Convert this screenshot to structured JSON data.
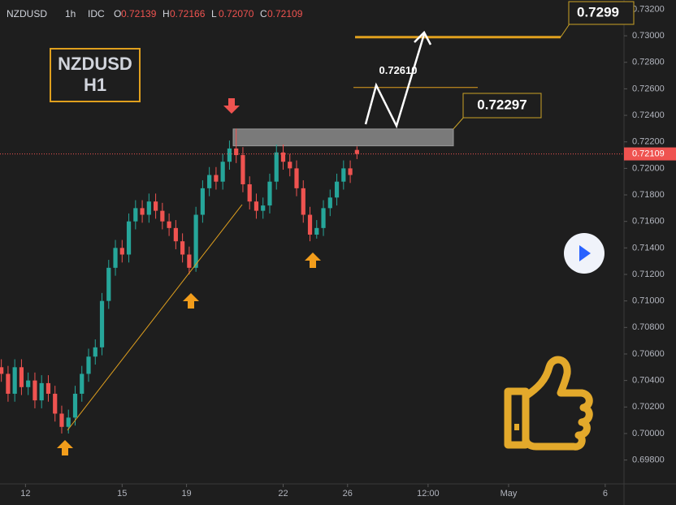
{
  "header": {
    "symbol": "NZDUSD",
    "interval": "1h",
    "exchange": "IDC",
    "ohlc": [
      {
        "key": "O",
        "value": "0.72139"
      },
      {
        "key": "H",
        "value": "0.72166"
      },
      {
        "key": "L",
        "value": "0.72070"
      },
      {
        "key": "C",
        "value": "0.72109"
      }
    ]
  },
  "chart_data": {
    "type": "candlestick",
    "label_lines": [
      "NZDUSD",
      "H1"
    ],
    "x": [
      -18,
      -13,
      -8,
      -3,
      2,
      7,
      12,
      17,
      22,
      27,
      32,
      37,
      42,
      47,
      52,
      57,
      62,
      67,
      72,
      77,
      82,
      87,
      92,
      97,
      102,
      107,
      112,
      117,
      122,
      127,
      132,
      137,
      142,
      147,
      152,
      157,
      162,
      167,
      172,
      177,
      182,
      187,
      192,
      197,
      202,
      207,
      212,
      217,
      222,
      227,
      232,
      237,
      242,
      247
    ],
    "open": [
      0.705,
      0.7045,
      0.703,
      0.705,
      0.7035,
      0.704,
      0.7025,
      0.7038,
      0.703,
      0.7015,
      0.7005,
      0.7012,
      0.703,
      0.7045,
      0.7058,
      0.7065,
      0.71,
      0.7125,
      0.714,
      0.7135,
      0.716,
      0.717,
      0.7165,
      0.7175,
      0.7168,
      0.716,
      0.7155,
      0.7145,
      0.7135,
      0.7125,
      0.7165,
      0.7185,
      0.7195,
      0.719,
      0.7205,
      0.7215,
      0.721,
      0.7188,
      0.7175,
      0.7168,
      0.7172,
      0.719,
      0.7212,
      0.7205,
      0.72,
      0.7185,
      0.7165,
      0.715,
      0.7155,
      0.717,
      0.7178,
      0.719,
      0.72,
      0.72139
    ],
    "high": [
      0.7056,
      0.7051,
      0.7056,
      0.7056,
      0.7046,
      0.7046,
      0.7044,
      0.7044,
      0.7036,
      0.7021,
      0.7018,
      0.7036,
      0.7051,
      0.7064,
      0.7071,
      0.7106,
      0.7131,
      0.7146,
      0.7146,
      0.7166,
      0.7176,
      0.7176,
      0.7181,
      0.7181,
      0.7174,
      0.7166,
      0.7161,
      0.7151,
      0.7141,
      0.7171,
      0.7191,
      0.7201,
      0.7201,
      0.7211,
      0.7221,
      0.723,
      0.7216,
      0.7194,
      0.7181,
      0.7178,
      0.7196,
      0.7218,
      0.7218,
      0.7211,
      0.7206,
      0.7191,
      0.7171,
      0.7161,
      0.7176,
      0.7184,
      0.7196,
      0.7206,
      0.7206,
      0.72166
    ],
    "low": [
      0.7039,
      0.7024,
      0.7024,
      0.7029,
      0.7029,
      0.7019,
      0.7019,
      0.7024,
      0.7009,
      0.7,
      0.7,
      0.7006,
      0.7024,
      0.7039,
      0.7052,
      0.7059,
      0.7094,
      0.7119,
      0.7129,
      0.7129,
      0.7154,
      0.7159,
      0.7159,
      0.7162,
      0.7154,
      0.7149,
      0.7139,
      0.7129,
      0.712,
      0.7122,
      0.7159,
      0.7179,
      0.7184,
      0.7184,
      0.7199,
      0.7204,
      0.7182,
      0.7169,
      0.7162,
      0.7162,
      0.7166,
      0.7184,
      0.7199,
      0.7194,
      0.7179,
      0.7159,
      0.7145,
      0.7147,
      0.7149,
      0.7164,
      0.7172,
      0.7184,
      0.7189,
      0.7207
    ],
    "close": [
      0.7045,
      0.703,
      0.705,
      0.7035,
      0.704,
      0.7025,
      0.7038,
      0.703,
      0.7015,
      0.7005,
      0.7012,
      0.703,
      0.7045,
      0.7058,
      0.7065,
      0.71,
      0.7125,
      0.714,
      0.7135,
      0.716,
      0.717,
      0.7165,
      0.7175,
      0.7168,
      0.716,
      0.7155,
      0.7145,
      0.7135,
      0.7125,
      0.7165,
      0.7185,
      0.7195,
      0.719,
      0.7205,
      0.7215,
      0.721,
      0.7188,
      0.7175,
      0.7168,
      0.7172,
      0.719,
      0.7212,
      0.7205,
      0.72,
      0.7185,
      0.7165,
      0.715,
      0.7155,
      0.717,
      0.7178,
      0.719,
      0.72,
      0.7195,
      0.72109
    ],
    "up_color": "#26a69a",
    "down_color": "#ef5350",
    "xlim": [
      -19,
      446
    ],
    "xticks": [
      {
        "value": 0,
        "label": "12"
      },
      {
        "value": 72,
        "label": "15"
      },
      {
        "value": 120,
        "label": "19"
      },
      {
        "value": 192,
        "label": "22"
      },
      {
        "value": 240,
        "label": "26"
      },
      {
        "value": 300,
        "label": "12:00"
      },
      {
        "value": 360,
        "label": "May"
      },
      {
        "value": 432,
        "label": "6"
      }
    ],
    "ylim": [
      0.6962,
      0.7327
    ],
    "yticks": [
      {
        "value": 0.698,
        "label": "0.69800"
      },
      {
        "value": 0.7,
        "label": "0.70000"
      },
      {
        "value": 0.702,
        "label": "0.70200"
      },
      {
        "value": 0.704,
        "label": "0.70400"
      },
      {
        "value": 0.706,
        "label": "0.70600"
      },
      {
        "value": 0.708,
        "label": "0.70800"
      },
      {
        "value": 0.71,
        "label": "0.71000"
      },
      {
        "value": 0.712,
        "label": "0.71200"
      },
      {
        "value": 0.714,
        "label": "0.71400"
      },
      {
        "value": 0.716,
        "label": "0.71600"
      },
      {
        "value": 0.718,
        "label": "0.71800"
      },
      {
        "value": 0.72,
        "label": "0.72000"
      },
      {
        "value": 0.722,
        "label": "0.72200"
      },
      {
        "value": 0.724,
        "label": "0.72400"
      },
      {
        "value": 0.726,
        "label": "0.72600"
      },
      {
        "value": 0.728,
        "label": "0.72800"
      },
      {
        "value": 0.73,
        "label": "0.73000"
      },
      {
        "value": 0.732,
        "label": "0.73200"
      }
    ],
    "zone": {
      "value": 0.72297,
      "bottom": 0.7217
    },
    "target": {
      "value": 0.7261,
      "label": "0.72610"
    },
    "top_target": {
      "value": 0.7299,
      "label": "0.7299"
    }
  }
}
